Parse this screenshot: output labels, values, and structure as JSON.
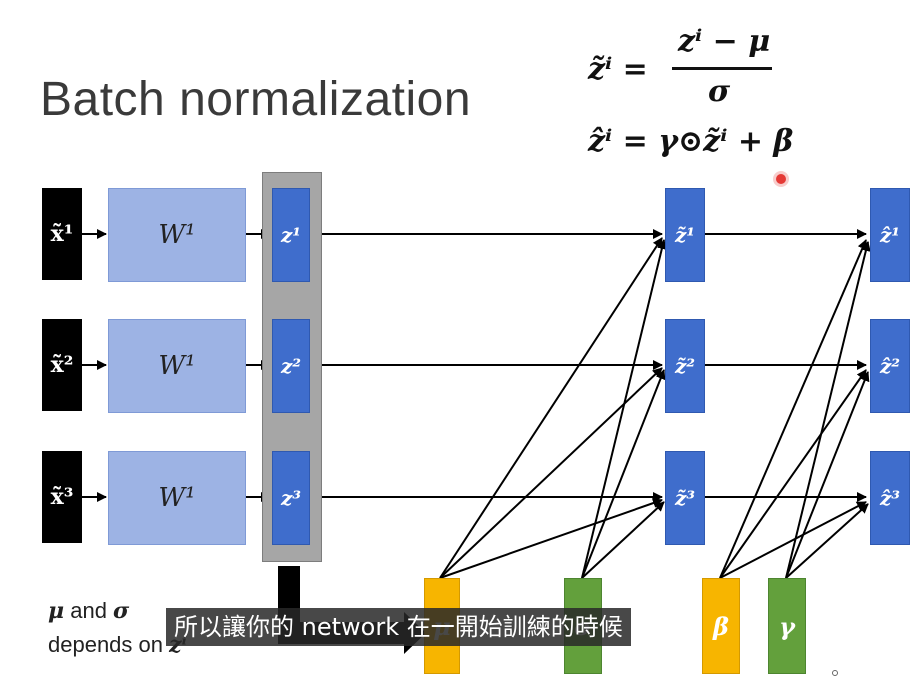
{
  "title": "Batch normalization",
  "formula": {
    "eq1_lhs": "z̃ⁱ =",
    "eq1_numerator": "zⁱ − μ",
    "eq1_denominator": "σ",
    "eq2": "ẑⁱ = γ⊙z̃ⁱ + β"
  },
  "rows": [
    {
      "input": "x̃¹",
      "weight": "W¹",
      "z": "z¹",
      "z_tilde": "z̃¹",
      "z_hat": "ẑ¹"
    },
    {
      "input": "x̃²",
      "weight": "W¹",
      "z": "z²",
      "z_tilde": "z̃²",
      "z_hat": "ẑ²"
    },
    {
      "input": "x̃³",
      "weight": "W¹",
      "z": "z³",
      "z_tilde": "z̃³",
      "z_hat": "ẑ³"
    }
  ],
  "params": {
    "mu": "μ",
    "sigma": "σ",
    "beta": "β",
    "gamma": "γ"
  },
  "note": {
    "line1_mu": "μ",
    "line1_and": " and ",
    "line1_sigma": "σ",
    "line2": "depends on ",
    "line2_z": "zⁱ"
  },
  "subtitle": "所以讓你的 network 在一開始訓練的時候",
  "colors": {
    "blue": "#3f6dcc",
    "light_blue": "#9db3e4",
    "orange": "#f7b500",
    "green": "#63a03c",
    "gray_panel": "#a6a6a6"
  }
}
